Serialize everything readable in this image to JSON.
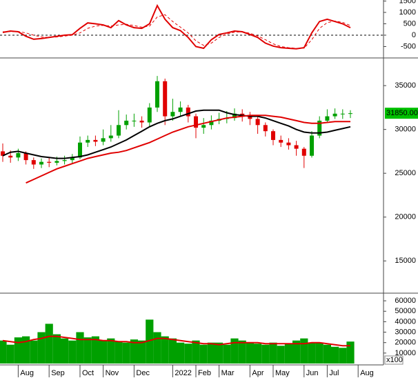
{
  "chart_data": [
    {
      "type": "line",
      "ylim": [
        -940,
        1545
      ],
      "yticks": [
        -500,
        0,
        500,
        1000,
        1500
      ],
      "zero_line": true,
      "series": [
        {
          "color": "#e00000",
          "style": "solid",
          "values": [
            120,
            180,
            150,
            -50,
            -180,
            -150,
            -100,
            -50,
            0,
            20,
            300,
            540,
            500,
            450,
            330,
            640,
            450,
            330,
            300,
            500,
            1300,
            700,
            330,
            200,
            -100,
            -500,
            -575,
            -200,
            30,
            100,
            180,
            150,
            30,
            -100,
            -350,
            -480,
            -550,
            -575,
            -600,
            -550,
            100,
            600,
            700,
            600,
            500,
            330,
            null
          ]
        },
        {
          "color": "#e00000",
          "style": "dashed",
          "values": [
            150,
            160,
            160,
            100,
            0,
            -80,
            -100,
            -80,
            -40,
            0,
            100,
            300,
            400,
            430,
            400,
            450,
            480,
            420,
            350,
            400,
            800,
            900,
            600,
            350,
            100,
            -250,
            -450,
            -350,
            -100,
            50,
            130,
            150,
            80,
            -30,
            -200,
            -380,
            -500,
            -550,
            -580,
            -570,
            -200,
            300,
            550,
            620,
            560,
            420,
            null
          ]
        }
      ]
    },
    {
      "type": "candlestick",
      "ylim": [
        11400,
        38000
      ],
      "yticks": [
        15000,
        20000,
        25000,
        30000,
        35000
      ],
      "up_color": "#00a000",
      "down_color": "#e00000",
      "open": [
        27500,
        27000,
        26800,
        27300,
        26500,
        26000,
        26300,
        26200,
        26400,
        26500,
        26800,
        28500,
        28800,
        28600,
        29000,
        29300,
        30500,
        31000,
        31000,
        30800,
        32500,
        35500,
        31500,
        32000,
        32500,
        31500,
        30200,
        30500,
        31000,
        31200,
        31300,
        31800,
        31500,
        31200,
        30500,
        29800,
        28800,
        28500,
        28200,
        27800,
        27000,
        29300,
        31000,
        31500,
        31800,
        31800,
        null
      ],
      "high": [
        28400,
        27600,
        27800,
        27500,
        26800,
        26700,
        26800,
        26900,
        27000,
        27200,
        29200,
        29300,
        29300,
        30000,
        30500,
        32200,
        31700,
        31800,
        31500,
        33000,
        36100,
        35800,
        33500,
        33200,
        32800,
        31800,
        31300,
        31600,
        31900,
        32100,
        32400,
        32300,
        32000,
        31600,
        30800,
        30000,
        29300,
        29000,
        28700,
        28000,
        29800,
        31500,
        32300,
        32400,
        32300,
        32200,
        null
      ],
      "low": [
        26300,
        26200,
        26400,
        26000,
        25500,
        25600,
        25700,
        25900,
        26000,
        26100,
        26600,
        28000,
        28100,
        28200,
        28600,
        29000,
        30000,
        30300,
        30200,
        30300,
        32000,
        30500,
        31000,
        31500,
        30800,
        29000,
        29500,
        30000,
        30600,
        30700,
        31000,
        30900,
        30500,
        29500,
        29200,
        28200,
        28000,
        27700,
        27000,
        25600,
        26800,
        29000,
        30800,
        31200,
        31200,
        31300,
        null
      ],
      "close": [
        27000,
        26800,
        27300,
        26500,
        26000,
        26300,
        26200,
        26400,
        26500,
        26800,
        28500,
        28800,
        28600,
        29000,
        29300,
        30500,
        31000,
        31000,
        30800,
        32500,
        35500,
        31500,
        32000,
        32500,
        31500,
        30200,
        30500,
        31000,
        31200,
        31300,
        31800,
        31500,
        31200,
        30500,
        29800,
        28800,
        28500,
        28200,
        27800,
        27000,
        29300,
        31000,
        31500,
        31800,
        31800,
        31850,
        null
      ],
      "series": [
        {
          "color": "#000000",
          "values": [
            27000,
            27400,
            27500,
            27300,
            27100,
            26900,
            26800,
            26700,
            26700,
            26800,
            26900,
            27100,
            27400,
            27700,
            28000,
            28400,
            28800,
            29300,
            29800,
            30300,
            30700,
            31000,
            31200,
            31500,
            31800,
            32100,
            32200,
            32200,
            32200,
            31900,
            31700,
            31600,
            31500,
            31500,
            31300,
            31000,
            30700,
            30400,
            30000,
            29700,
            29600,
            29600,
            29700,
            29900,
            30100,
            30300,
            null
          ]
        },
        {
          "color": "#e00000",
          "values": [
            null,
            null,
            null,
            23900,
            24300,
            24700,
            25100,
            25500,
            25800,
            26100,
            26400,
            26700,
            26900,
            27100,
            27300,
            27400,
            27600,
            27900,
            28200,
            28500,
            28900,
            29300,
            29700,
            30000,
            30300,
            30500,
            30700,
            30900,
            31100,
            31300,
            31400,
            31500,
            31600,
            31600,
            31600,
            31500,
            31400,
            31200,
            31000,
            30800,
            30700,
            30700,
            30800,
            30900,
            30900,
            30900,
            null
          ]
        }
      ],
      "last_price": {
        "value": 31850,
        "label": "31850.00"
      },
      "last_color": "#00c000"
    },
    {
      "type": "bar",
      "ylim": [
        0,
        66000
      ],
      "yticks": [
        10000,
        20000,
        30000,
        40000,
        50000,
        60000
      ],
      "unit_label": "x100",
      "color": "#00a000",
      "values": [
        22000,
        18000,
        25000,
        26000,
        22000,
        30000,
        38000,
        28000,
        24000,
        22000,
        30000,
        25000,
        26000,
        22000,
        24000,
        21000,
        20000,
        23000,
        22000,
        42000,
        30000,
        26000,
        24000,
        20000,
        19000,
        22000,
        18000,
        20000,
        20000,
        18000,
        24000,
        22000,
        20000,
        19000,
        18000,
        20000,
        17000,
        19000,
        22000,
        24000,
        20000,
        20000,
        18000,
        16000,
        15000,
        21000,
        null
      ],
      "ma": {
        "color": "#e00000",
        "values": [
          22000,
          21000,
          20000,
          21000,
          23000,
          24000,
          26000,
          26000,
          25000,
          24000,
          23000,
          23000,
          23000,
          22000,
          22000,
          21000,
          21000,
          20000,
          20000,
          22000,
          24000,
          24000,
          23000,
          22000,
          21000,
          20000,
          19000,
          19000,
          18000,
          19000,
          20000,
          20000,
          20000,
          20000,
          19000,
          19000,
          19000,
          19000,
          19000,
          19000,
          20000,
          20000,
          19000,
          18000,
          17000,
          17000,
          null
        ]
      },
      "categories": [
        null,
        null,
        "Aug",
        null,
        null,
        null,
        "Sep",
        null,
        null,
        null,
        "Oct",
        null,
        null,
        "Nov",
        null,
        null,
        null,
        "Dec",
        null,
        null,
        null,
        null,
        "2022",
        null,
        null,
        "Feb",
        null,
        null,
        "Mar",
        null,
        null,
        null,
        "Apr",
        null,
        null,
        "May",
        null,
        null,
        null,
        "Jun",
        null,
        null,
        "Jul",
        null,
        null,
        null,
        "Aug"
      ]
    }
  ]
}
